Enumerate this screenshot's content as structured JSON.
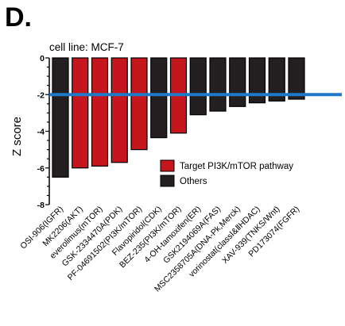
{
  "panel_label": "D.",
  "colors": {
    "target": "#c4161c",
    "others": "#231f20",
    "threshold": "#1f78c8"
  },
  "chart_data": {
    "type": "bar",
    "subtitle": "cell line: MCF-7",
    "ylabel": "Z score",
    "xlabel": "",
    "ylim": [
      -8,
      0
    ],
    "yticks": [
      0,
      -2,
      -4,
      -6,
      -8
    ],
    "threshold": -2,
    "categories": [
      "OSI-906(IGFR)",
      "MK2206(AKT)",
      "everolimus(mTOR)",
      "GSK-2334470A(PDK)",
      "PF-04691502(PI3K/mTOR)",
      "Flavopiridol(CDK)",
      "BEZ-235(PI3K/mTOR)",
      "4-OH-tamoxifen(ER)",
      "GSK2194069A(FAS)",
      "MSC2358705A(DNA-Pk,Merck)",
      "vorinostat(classⅠ&ⅡHDAC)",
      "XAV-939(TNKS/Wnt)",
      "PD173074(FGFR)"
    ],
    "values": [
      -6.5,
      -6.0,
      -5.9,
      -5.7,
      -5.0,
      -4.35,
      -4.1,
      -3.1,
      -2.9,
      -2.65,
      -2.45,
      -2.35,
      -2.25
    ],
    "groups": [
      "others",
      "target",
      "target",
      "target",
      "target",
      "others",
      "target",
      "others",
      "others",
      "others",
      "others",
      "others",
      "others"
    ],
    "legend": [
      {
        "key": "target",
        "label": "Target PI3K/mTOR pathway"
      },
      {
        "key": "others",
        "label": "Others"
      }
    ],
    "legend_position": "bottom-right"
  }
}
